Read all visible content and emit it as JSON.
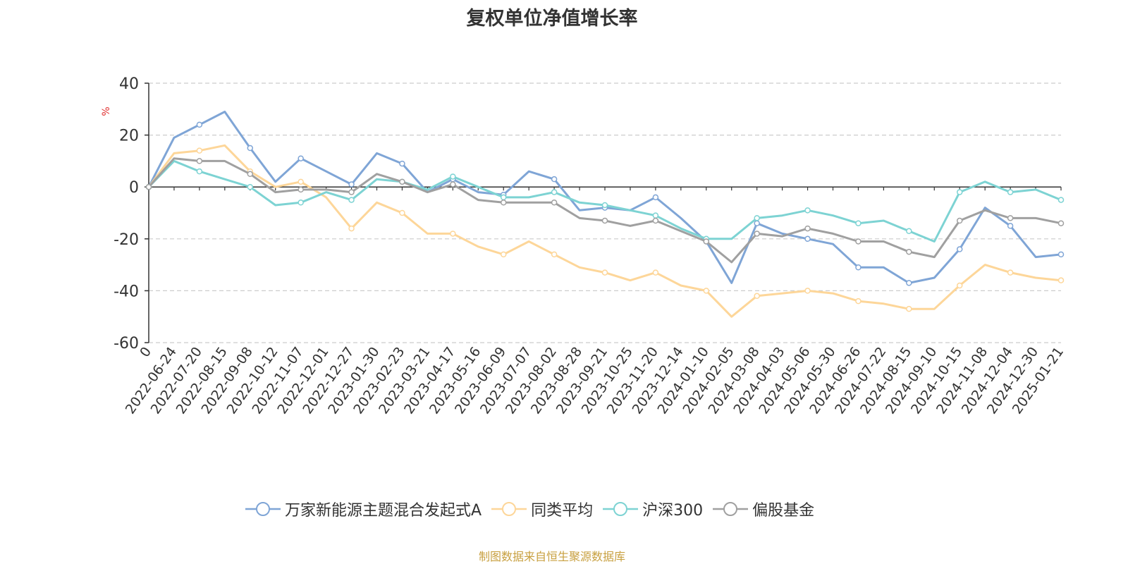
{
  "chart_data": {
    "type": "line",
    "title": "复权单位净值增长率",
    "ylabel": "%",
    "ylim": [
      -60,
      40
    ],
    "yticks": [
      40,
      20,
      0,
      -20,
      -40,
      -60
    ],
    "grid": true,
    "legend_position": "bottom",
    "x_tick_labels": [
      "0",
      "2022-06-24",
      "2022-07-20",
      "2022-08-15",
      "2022-09-08",
      "2022-10-12",
      "2022-11-07",
      "2022-12-01",
      "2022-12-27",
      "2023-01-30",
      "2023-02-23",
      "2023-03-21",
      "2023-04-17",
      "2023-05-16",
      "2023-06-09",
      "2023-07-07",
      "2023-08-02",
      "2023-08-28",
      "2023-09-21",
      "2023-10-25",
      "2023-11-20",
      "2023-12-14",
      "2024-01-10",
      "2024-02-05",
      "2024-03-08",
      "2024-04-03",
      "2024-05-06",
      "2024-05-30",
      "2024-06-26",
      "2024-07-22",
      "2024-08-15",
      "2024-09-10",
      "2024-10-15",
      "2024-11-08",
      "2024-12-04",
      "2024-12-30",
      "2025-01-21"
    ],
    "series": [
      {
        "name": "万家新能源主题混合发起式A",
        "color": "#7fa5d6",
        "values": [
          0,
          19,
          24,
          29,
          15,
          2,
          11,
          6,
          1,
          13,
          9,
          -2,
          3,
          -2,
          -3,
          6,
          3,
          -9,
          -8,
          -9,
          -4,
          -12,
          -21,
          -37,
          -14,
          -18,
          -20,
          -22,
          -31,
          -31,
          -37,
          -35,
          -24,
          -8,
          -15,
          -27,
          -26
        ]
      },
      {
        "name": "同类平均",
        "color": "#fdd699",
        "values": [
          0,
          13,
          14,
          16,
          6,
          0,
          2,
          -4,
          -16,
          -6,
          -10,
          -18,
          -18,
          -23,
          -26,
          -21,
          -26,
          -31,
          -33,
          -36,
          -33,
          -38,
          -40,
          -50,
          -42,
          -41,
          -40,
          -41,
          -44,
          -45,
          -47,
          -47,
          -38,
          -30,
          -33,
          -35,
          -36
        ]
      },
      {
        "name": "沪深300",
        "color": "#7dd3d3",
        "values": [
          0,
          10,
          6,
          3,
          0,
          -7,
          -6,
          -2,
          -5,
          3,
          2,
          -1,
          4,
          0,
          -4,
          -4,
          -2,
          -6,
          -7,
          -9,
          -11,
          -16,
          -20,
          -20,
          -12,
          -11,
          -9,
          -11,
          -14,
          -13,
          -17,
          -21,
          -2,
          2,
          -2,
          -1,
          -5
        ]
      },
      {
        "name": "偏股基金",
        "color": "#a0a0a0",
        "values": [
          0,
          11,
          10,
          10,
          5,
          -2,
          -1,
          -1,
          -2,
          5,
          2,
          -2,
          1,
          -5,
          -6,
          -6,
          -6,
          -12,
          -13,
          -15,
          -13,
          -17,
          -21,
          -29,
          -18,
          -19,
          -16,
          -18,
          -21,
          -21,
          -25,
          -27,
          -13,
          -9,
          -12,
          -12,
          -14
        ]
      }
    ]
  },
  "legend": {
    "items": [
      {
        "label": "万家新能源主题混合发起式A",
        "color": "#7fa5d6"
      },
      {
        "label": "同类平均",
        "color": "#fdd699"
      },
      {
        "label": "沪深300",
        "color": "#7dd3d3"
      },
      {
        "label": "偏股基金",
        "color": "#a0a0a0"
      }
    ]
  },
  "source_note": "制图数据来自恒生聚源数据库",
  "colors": {
    "ylabel_color": "#e03030",
    "grid": "#cccccc",
    "axis": "#333333",
    "source": "#c8a040"
  }
}
